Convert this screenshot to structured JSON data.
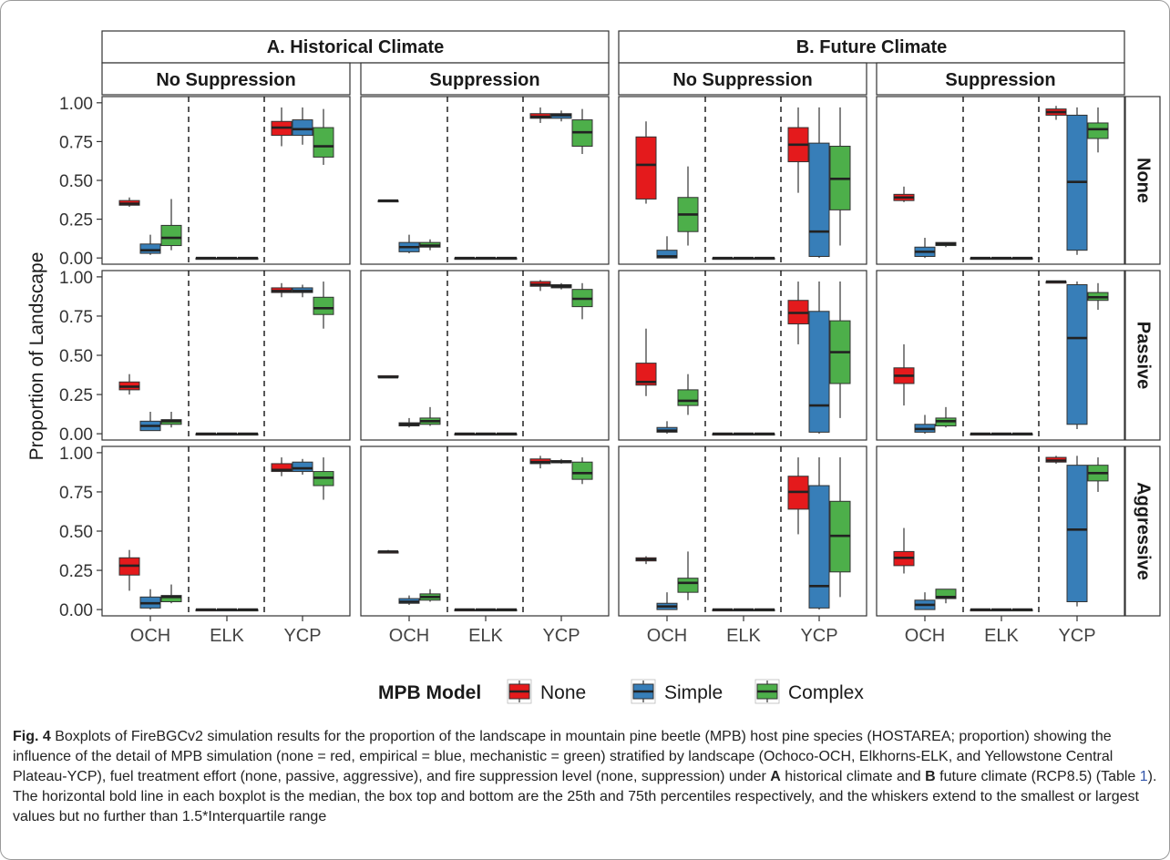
{
  "chart_data": {
    "type": "boxplot",
    "ylabel": "Proportion of Landscape",
    "ylim": [
      -0.04,
      1.04
    ],
    "y_ticks": [
      "0.00",
      "0.25",
      "0.50",
      "0.75",
      "1.00"
    ],
    "categories": [
      "OCH",
      "ELK",
      "YCP"
    ],
    "climates": [
      {
        "label": "A. Historical Climate",
        "suppression": [
          "No Suppression",
          "Suppression"
        ]
      },
      {
        "label": "B. Future Climate",
        "suppression": [
          "No Suppression",
          "Suppression"
        ]
      }
    ],
    "fuel_treatments": [
      "None",
      "Passive",
      "Aggressive"
    ],
    "legend": {
      "title": "MPB Model",
      "items": [
        {
          "name": "None",
          "color": "#e41a1c"
        },
        {
          "name": "Simple",
          "color": "#377eb8"
        },
        {
          "name": "Complex",
          "color": "#4daf4a"
        }
      ],
      "placement": "bottom"
    },
    "box_order": "[fuel_row][column: Hist-NoSup, Hist-Sup, Fut-NoSup, Fut-Sup][landscape: OCH, ELK, YCP][model: None, Simple, Complex] -> [whisker_low, q1, median, q3, whisker_high]",
    "boxes": [
      [
        [
          [
            [
              0.33,
              0.34,
              0.35,
              0.37,
              0.39
            ],
            [
              0.02,
              0.03,
              0.05,
              0.09,
              0.15
            ],
            [
              0.05,
              0.08,
              0.13,
              0.21,
              0.38
            ]
          ],
          [
            [
              0,
              0,
              0,
              0,
              0
            ],
            [
              0,
              0,
              0,
              0,
              0
            ],
            [
              0,
              0,
              0,
              0,
              0
            ]
          ],
          [
            [
              0.72,
              0.79,
              0.84,
              0.88,
              0.97
            ],
            [
              0.73,
              0.79,
              0.83,
              0.89,
              0.97
            ],
            [
              0.6,
              0.65,
              0.72,
              0.84,
              0.96
            ]
          ]
        ],
        [
          [
            [
              0.37,
              0.37,
              0.37,
              0.37,
              0.37
            ],
            [
              0.03,
              0.04,
              0.07,
              0.1,
              0.15
            ],
            [
              0.05,
              0.07,
              0.08,
              0.1,
              0.12
            ]
          ],
          [
            [
              0,
              0,
              0,
              0,
              0
            ],
            [
              0,
              0,
              0,
              0,
              0
            ],
            [
              0,
              0,
              0,
              0,
              0
            ]
          ],
          [
            [
              0.87,
              0.9,
              0.91,
              0.93,
              0.97
            ],
            [
              0.88,
              0.9,
              0.92,
              0.93,
              0.95
            ],
            [
              0.67,
              0.72,
              0.81,
              0.89,
              0.96
            ]
          ]
        ],
        [
          [
            [
              0.35,
              0.38,
              0.6,
              0.78,
              0.88
            ],
            [
              0,
              0,
              0.01,
              0.05,
              0.14
            ],
            [
              0.08,
              0.17,
              0.28,
              0.39,
              0.59
            ]
          ],
          [
            [
              0,
              0,
              0,
              0,
              0
            ],
            [
              0,
              0,
              0,
              0,
              0
            ],
            [
              0,
              0,
              0,
              0,
              0
            ]
          ],
          [
            [
              0.42,
              0.62,
              0.73,
              0.84,
              0.97
            ],
            [
              0,
              0.01,
              0.17,
              0.74,
              0.97
            ],
            [
              0.08,
              0.31,
              0.51,
              0.72,
              0.97
            ]
          ]
        ],
        [
          [
            [
              0.36,
              0.37,
              0.39,
              0.41,
              0.46
            ],
            [
              0,
              0.01,
              0.04,
              0.07,
              0.13
            ],
            [
              0.07,
              0.08,
              0.09,
              0.1,
              0.1
            ]
          ],
          [
            [
              0,
              0,
              0,
              0,
              0
            ],
            [
              0,
              0,
              0,
              0,
              0
            ],
            [
              0,
              0,
              0,
              0,
              0
            ]
          ],
          [
            [
              0.89,
              0.92,
              0.94,
              0.96,
              0.98
            ],
            [
              0.02,
              0.05,
              0.49,
              0.92,
              0.97
            ],
            [
              0.68,
              0.77,
              0.83,
              0.87,
              0.97
            ]
          ]
        ]
      ],
      [
        [
          [
            [
              0.25,
              0.28,
              0.3,
              0.33,
              0.38
            ],
            [
              0.02,
              0.02,
              0.05,
              0.08,
              0.14
            ],
            [
              0.04,
              0.06,
              0.08,
              0.09,
              0.14
            ]
          ],
          [
            [
              0,
              0,
              0,
              0,
              0
            ],
            [
              0,
              0,
              0,
              0,
              0
            ],
            [
              0,
              0,
              0,
              0,
              0
            ]
          ],
          [
            [
              0.87,
              0.9,
              0.91,
              0.93,
              0.96
            ],
            [
              0.87,
              0.9,
              0.91,
              0.93,
              0.95
            ],
            [
              0.67,
              0.76,
              0.8,
              0.87,
              0.97
            ]
          ]
        ],
        [
          [
            [
              0.36,
              0.36,
              0.36,
              0.37,
              0.37
            ],
            [
              0.04,
              0.05,
              0.06,
              0.07,
              0.1
            ],
            [
              0.05,
              0.06,
              0.08,
              0.1,
              0.17
            ]
          ],
          [
            [
              0,
              0,
              0,
              0,
              0
            ],
            [
              0,
              0,
              0,
              0,
              0
            ],
            [
              0,
              0,
              0,
              0,
              0
            ]
          ],
          [
            [
              0.91,
              0.94,
              0.95,
              0.97,
              0.98
            ],
            [
              0.92,
              0.93,
              0.94,
              0.95,
              0.96
            ],
            [
              0.73,
              0.81,
              0.86,
              0.92,
              0.96
            ]
          ]
        ],
        [
          [
            [
              0.24,
              0.31,
              0.33,
              0.45,
              0.67
            ],
            [
              0,
              0.01,
              0.02,
              0.04,
              0.08
            ],
            [
              0.12,
              0.18,
              0.21,
              0.28,
              0.38
            ]
          ],
          [
            [
              0,
              0,
              0,
              0,
              0
            ],
            [
              0,
              0,
              0,
              0,
              0
            ],
            [
              0,
              0,
              0,
              0,
              0
            ]
          ],
          [
            [
              0.57,
              0.7,
              0.77,
              0.85,
              0.97
            ],
            [
              0,
              0.01,
              0.18,
              0.78,
              0.97
            ],
            [
              0.1,
              0.32,
              0.52,
              0.72,
              0.97
            ]
          ]
        ],
        [
          [
            [
              0.18,
              0.32,
              0.37,
              0.42,
              0.57
            ],
            [
              0,
              0.01,
              0.03,
              0.06,
              0.12
            ],
            [
              0.04,
              0.05,
              0.08,
              0.1,
              0.17
            ]
          ],
          [
            [
              0,
              0,
              0,
              0,
              0
            ],
            [
              0,
              0,
              0,
              0,
              0
            ],
            [
              0,
              0,
              0,
              0,
              0
            ]
          ],
          [
            [
              0.96,
              0.96,
              0.97,
              0.97,
              0.97
            ],
            [
              0.03,
              0.06,
              0.61,
              0.95,
              0.97
            ],
            [
              0.79,
              0.85,
              0.87,
              0.9,
              0.96
            ]
          ]
        ]
      ],
      [
        [
          [
            [
              0.12,
              0.22,
              0.28,
              0.33,
              0.38
            ],
            [
              0,
              0.01,
              0.04,
              0.08,
              0.13
            ],
            [
              0.04,
              0.05,
              0.08,
              0.09,
              0.16
            ]
          ],
          [
            [
              0,
              0,
              0,
              0,
              0
            ],
            [
              0,
              0,
              0,
              0,
              0
            ],
            [
              0,
              0,
              0,
              0,
              0
            ]
          ],
          [
            [
              0.85,
              0.88,
              0.89,
              0.93,
              0.97
            ],
            [
              0.86,
              0.88,
              0.9,
              0.94,
              0.96
            ],
            [
              0.7,
              0.79,
              0.84,
              0.88,
              0.97
            ]
          ]
        ],
        [
          [
            [
              0.36,
              0.36,
              0.37,
              0.37,
              0.38
            ],
            [
              0.03,
              0.04,
              0.05,
              0.07,
              0.09
            ],
            [
              0.05,
              0.06,
              0.08,
              0.1,
              0.13
            ]
          ],
          [
            [
              0,
              0,
              0,
              0,
              0
            ],
            [
              0,
              0,
              0,
              0,
              0
            ],
            [
              0,
              0,
              0,
              0,
              0
            ]
          ],
          [
            [
              0.9,
              0.93,
              0.94,
              0.96,
              0.98
            ],
            [
              0.93,
              0.94,
              0.94,
              0.95,
              0.96
            ],
            [
              0.8,
              0.83,
              0.87,
              0.94,
              0.97
            ]
          ]
        ],
        [
          [
            [
              0.29,
              0.31,
              0.32,
              0.33,
              0.34
            ],
            [
              0,
              0,
              0.02,
              0.04,
              0.11
            ],
            [
              0.06,
              0.11,
              0.17,
              0.2,
              0.37
            ]
          ],
          [
            [
              0,
              0,
              0,
              0,
              0
            ],
            [
              0,
              0,
              0,
              0,
              0
            ],
            [
              0,
              0,
              0,
              0,
              0
            ]
          ],
          [
            [
              0.48,
              0.64,
              0.75,
              0.85,
              0.97
            ],
            [
              0,
              0.01,
              0.15,
              0.79,
              0.97
            ],
            [
              0.08,
              0.24,
              0.47,
              0.69,
              0.97
            ]
          ]
        ],
        [
          [
            [
              0.23,
              0.28,
              0.33,
              0.37,
              0.52
            ],
            [
              0,
              0,
              0.03,
              0.06,
              0.11
            ],
            [
              0.04,
              0.07,
              0.08,
              0.13,
              0.13
            ]
          ],
          [
            [
              0,
              0,
              0,
              0,
              0
            ],
            [
              0,
              0,
              0,
              0,
              0
            ],
            [
              0,
              0,
              0,
              0,
              0
            ]
          ],
          [
            [
              0.93,
              0.94,
              0.95,
              0.97,
              0.98
            ],
            [
              0.02,
              0.05,
              0.51,
              0.92,
              0.98
            ],
            [
              0.75,
              0.82,
              0.87,
              0.92,
              0.97
            ]
          ]
        ]
      ]
    ]
  },
  "caption": {
    "label": "Fig. 4",
    "text_1": "  Boxplots of FireBGCv2 simulation results for the proportion of the landscape in mountain pine beetle (MPB) host pine species (HOSTAREA; proportion) showing the influence of the detail of MPB simulation (none = red, empirical = blue, mechanistic = green) stratified by landscape (Ochoco-OCH, Elkhorns-ELK, and Yellowstone Central Plateau-YCP), fuel treatment effort (none, passive, aggressive), and fire suppression level (none, suppression) under ",
    "bold_a": "A",
    "text_2": " historical climate and ",
    "bold_b": "B",
    "text_3": " future climate (RCP8.5) (Table ",
    "table_ref": "1",
    "text_4": "). The horizontal bold line in each boxplot is the median, the box top and bottom are the 25th and 75th percentiles respectively, and the whiskers extend to the smallest or largest values but no further than 1.5*Interquartile range"
  }
}
